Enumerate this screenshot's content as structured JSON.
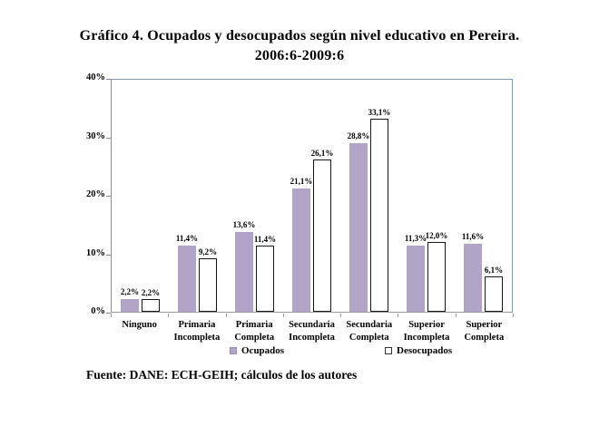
{
  "title": {
    "line1": "Gráfico 4. Ocupados y desocupados según nivel educativo en Pereira.",
    "line2": "2006:6-2009:6"
  },
  "source": "Fuente: DANE: ECH-GEIH; cálculos de los autores",
  "colors": {
    "ocupados_fill": "#b1a4c6",
    "desocupados_fill": "#ffffff",
    "desocupados_border": "#1a1a1a",
    "plot_border": "#8796b5",
    "axis_line": "#8c8c8c"
  },
  "chart_data": {
    "type": "bar",
    "title": "Gráfico 4. Ocupados y desocupados según nivel educativo en Pereira. 2006:6-2009:6",
    "categories": [
      "Ninguno",
      "Primaria\nIncompleta",
      "Primaria\nCompleta",
      "Secundaria\nIncompleta",
      "Secundaria\nCompleta",
      "Superior\nIncompleta",
      "Superior\nCompleta"
    ],
    "series": [
      {
        "name": "Ocupados",
        "values": [
          2.2,
          11.4,
          13.6,
          21.1,
          28.8,
          11.3,
          11.6
        ],
        "labels": [
          "2,2%",
          "11,4%",
          "13,6%",
          "21,1%",
          "28,8%",
          "11,3%",
          "11,6%"
        ]
      },
      {
        "name": "Desocupados",
        "values": [
          2.2,
          9.2,
          11.4,
          26.1,
          33.1,
          12.0,
          6.1
        ],
        "labels": [
          "2,2%",
          "9,2%",
          "11,4%",
          "26,1%",
          "33,1%",
          "12,0%",
          "6,1%"
        ]
      }
    ],
    "xlabel": "",
    "ylabel": "",
    "ylim": [
      0,
      40
    ],
    "yticks": [
      "0%",
      "10%",
      "20%",
      "30%",
      "40%"
    ],
    "grid": false,
    "legend_position": "bottom"
  }
}
